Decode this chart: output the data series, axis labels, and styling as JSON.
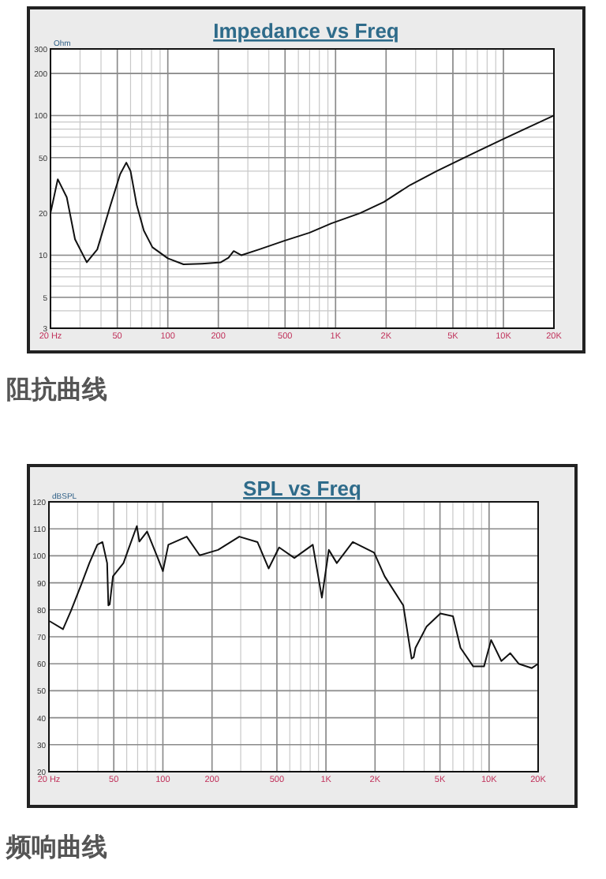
{
  "chart_data": [
    {
      "type": "line",
      "title": "Impedance vs Freq",
      "ylabel": "Ohm",
      "annotations": [
        "阻抗曲线"
      ],
      "log": "xy",
      "grid": true,
      "color": "#111111",
      "x": [
        20,
        22.1,
        25,
        28,
        32.9,
        38,
        45.6,
        52,
        56.6,
        60,
        65.3,
        72,
        81,
        100,
        124,
        160,
        207,
        230,
        247,
        274,
        350,
        495,
        700,
        943,
        1400,
        1944,
        2780,
        4000,
        6680,
        10000,
        14000,
        20000
      ],
      "values": [
        20,
        35,
        26,
        13,
        8.9,
        11,
        22.9,
        38,
        46,
        40,
        22.9,
        15,
        11.4,
        9.5,
        8.6,
        8.7,
        8.9,
        9.6,
        10.7,
        10,
        11,
        12.7,
        14.5,
        16.9,
        20,
        24.1,
        31.8,
        40,
        54,
        68,
        82,
        100
      ],
      "xlim": [
        20,
        20000
      ],
      "ylim": [
        3,
        300
      ],
      "xticks": [
        {
          "value": 20,
          "label": "20 Hz"
        },
        50,
        100,
        200,
        500,
        {
          "value": 1000,
          "label": "1K"
        },
        {
          "value": 2000,
          "label": "2K"
        },
        {
          "value": 5000,
          "label": "5K"
        },
        {
          "value": 10000,
          "label": "10K"
        },
        {
          "value": 20000,
          "label": "20K"
        }
      ],
      "yticks": [
        3,
        5,
        10,
        20,
        50,
        100,
        200,
        300
      ]
    },
    {
      "type": "line",
      "title": "SPL vs Freq",
      "ylabel": "dBSPL",
      "annotations": [
        "频响曲线"
      ],
      "log": "x",
      "grid": true,
      "color": "#111111",
      "x": [
        20.3,
        24.4,
        27.3,
        31.6,
        35.4,
        39.6,
        42.6,
        45.5,
        46.3,
        47.2,
        49.4,
        57.3,
        62,
        69.2,
        71.7,
        80,
        93,
        100,
        108,
        140,
        168,
        218,
        294,
        380,
        445,
        516,
        640,
        830,
        944,
        1041,
        1165,
        1460,
        1973,
        2290,
        2980,
        3350,
        3450,
        3540,
        4130,
        5030,
        6010,
        6680,
        8000,
        9310,
        10300,
        11900,
        13500,
        15200,
        18300,
        20000
      ],
      "values": [
        75.7,
        72.8,
        79.6,
        89.4,
        97.3,
        104.1,
        105.1,
        97.3,
        81.6,
        82,
        92.4,
        97.3,
        103.1,
        111,
        105.3,
        109,
        99.2,
        94.3,
        104.1,
        107.1,
        100.2,
        102.2,
        107.1,
        105.1,
        95.3,
        103.1,
        99.2,
        104.1,
        84.5,
        102.2,
        97.3,
        105.1,
        101.2,
        92.4,
        81.6,
        61.9,
        62.4,
        65.9,
        73.7,
        78.6,
        77.6,
        65.9,
        59,
        59,
        68.8,
        61,
        63.9,
        60,
        58.4,
        60
      ],
      "xlim": [
        20,
        20000
      ],
      "ylim": [
        20,
        120
      ],
      "xticks": [
        {
          "value": 20,
          "label": "20 Hz"
        },
        50,
        100,
        200,
        500,
        {
          "value": 1000,
          "label": "1K"
        },
        {
          "value": 2000,
          "label": "2K"
        },
        {
          "value": 5000,
          "label": "5K"
        },
        {
          "value": 10000,
          "label": "10K"
        },
        {
          "value": 20000,
          "label": "20K"
        }
      ],
      "yticks": [
        20,
        30,
        40,
        50,
        60,
        70,
        80,
        90,
        100,
        110,
        120
      ]
    }
  ]
}
